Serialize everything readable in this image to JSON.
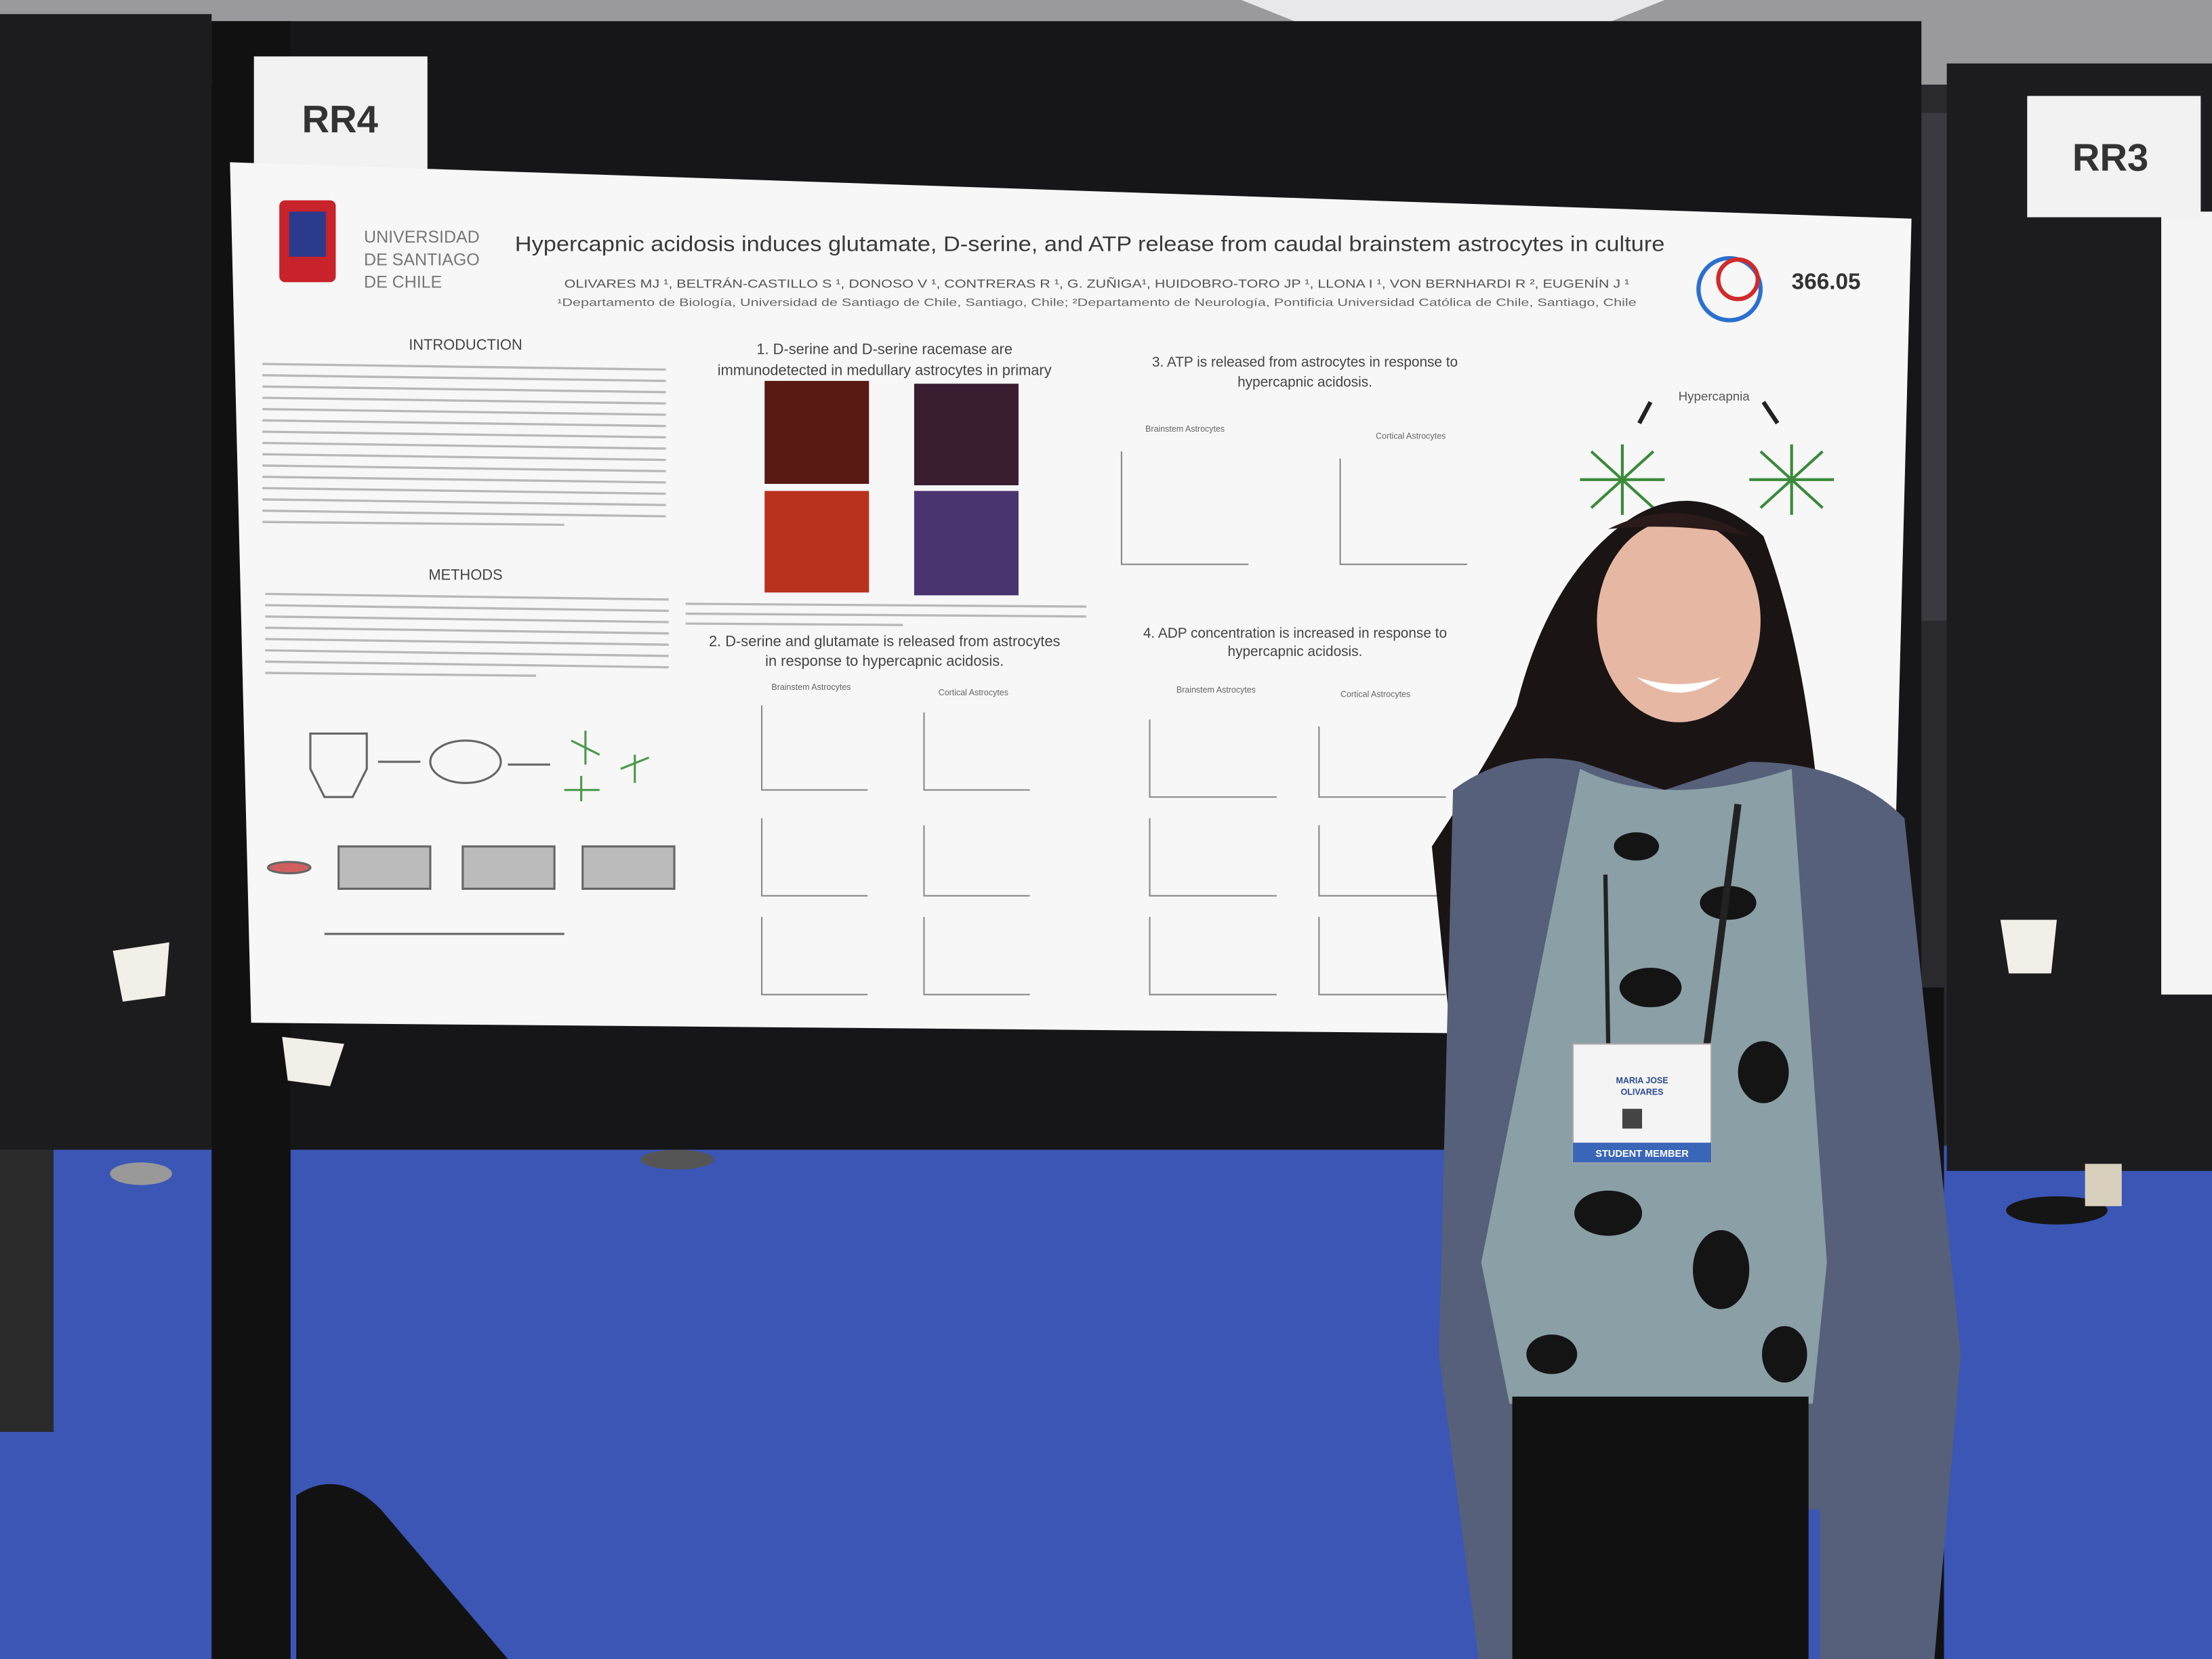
{
  "boards": {
    "left": "RR4",
    "right": "RR3"
  },
  "poster": {
    "title": "Hypercapnic acidosis induces glutamate, D-serine, and ATP release from caudal brainstem astrocytes in culture",
    "number": "366.05",
    "university": [
      "UNIVERSIDAD",
      "DE SANTIAGO",
      "DE CHILE"
    ],
    "authors": "OLIVARES MJ ¹, BELTRÁN-CASTILLO S ¹, DONOSO V ¹, CONTRERAS R ¹, G. ZUÑIGA¹, HUIDOBRO-TORO JP ¹, LLONA I ¹, VON BERNHARDI R ², EUGENÍN J ¹",
    "affiliations": "¹Departamento de Biología, Universidad de Santiago de Chile, Santiago, Chile; ²Departamento de Neurología, Pontificia Universidad Católica de Chile, Santiago, Chile",
    "introduction": "INTRODUCTION",
    "methods": "METHODS",
    "sections": [
      [
        "1. D-serine and D-serine racemase are",
        "immunodetected in medullary astrocytes in primary"
      ],
      [
        "2. D-serine and glutamate is released from astrocytes",
        "in response to hypercapnic acidosis."
      ],
      [
        "3. ATP is released from astrocytes in response to",
        "hypercapnic acidosis."
      ],
      [
        "4. ADP concentration is increased in response to",
        "hypercapnic acidosis."
      ]
    ],
    "panel_labels": {
      "brainstem": "Brainstem Astrocytes",
      "cortical": "Cortical Astrocytes"
    },
    "diagram_label": "Hypercapnia"
  },
  "badge": {
    "name": [
      "MARIA JOSE",
      "OLIVARES"
    ],
    "role": "STUDENT MEMBER"
  }
}
